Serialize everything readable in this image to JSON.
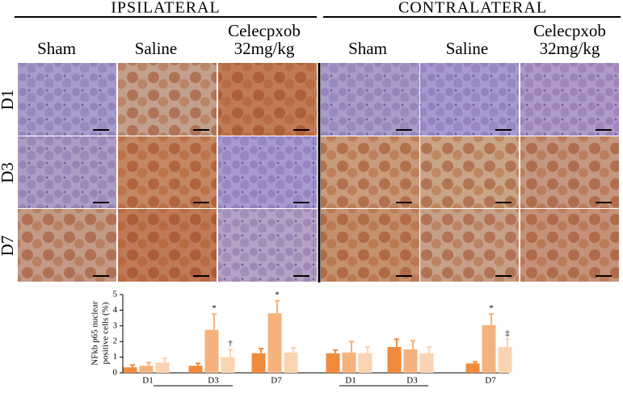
{
  "header": {
    "left_title": "IPSILATERAL",
    "right_title": "CONTRALATERAL",
    "columns": [
      [
        "Sham"
      ],
      [
        "Saline"
      ],
      [
        "Celecpxob",
        "32mg/kg"
      ],
      [
        "Sham"
      ],
      [
        "Saline"
      ],
      [
        "Celecpxob",
        "32mg/kg"
      ]
    ],
    "rows": [
      "D1",
      "D3",
      "D7"
    ]
  },
  "chart_data": {
    "type": "bar",
    "ylabel": [
      "NFkb p65 nuclear",
      "positive cells (%)"
    ],
    "categories": [
      "D1",
      "D3",
      "D7",
      "D1",
      "D3",
      "D7"
    ],
    "ylim": [
      0,
      5
    ],
    "yticks": [
      0,
      1,
      2,
      3,
      4,
      5
    ],
    "series": [
      {
        "color": "#f08a3c",
        "values": [
          0.35,
          0.45,
          1.25,
          1.25,
          1.65,
          0.6
        ],
        "errors": [
          0.15,
          0.15,
          0.3,
          0.2,
          0.5,
          0.1
        ],
        "marker_labels": [
          null,
          null,
          null,
          null,
          null,
          null
        ]
      },
      {
        "color": "#f6b27c",
        "values": [
          0.45,
          2.75,
          3.8,
          1.3,
          1.5,
          3.05
        ],
        "errors": [
          0.2,
          1.0,
          0.8,
          0.7,
          0.55,
          0.7
        ],
        "marker_labels": [
          null,
          "*",
          "*",
          null,
          null,
          "*"
        ]
      },
      {
        "color": "#fad3b2",
        "values": [
          0.65,
          1.0,
          1.3,
          1.25,
          1.25,
          1.65
        ],
        "errors": [
          0.3,
          0.5,
          0.3,
          0.4,
          0.4,
          0.5
        ],
        "marker_labels": [
          null,
          "†",
          null,
          null,
          null,
          "‡"
        ]
      }
    ]
  }
}
